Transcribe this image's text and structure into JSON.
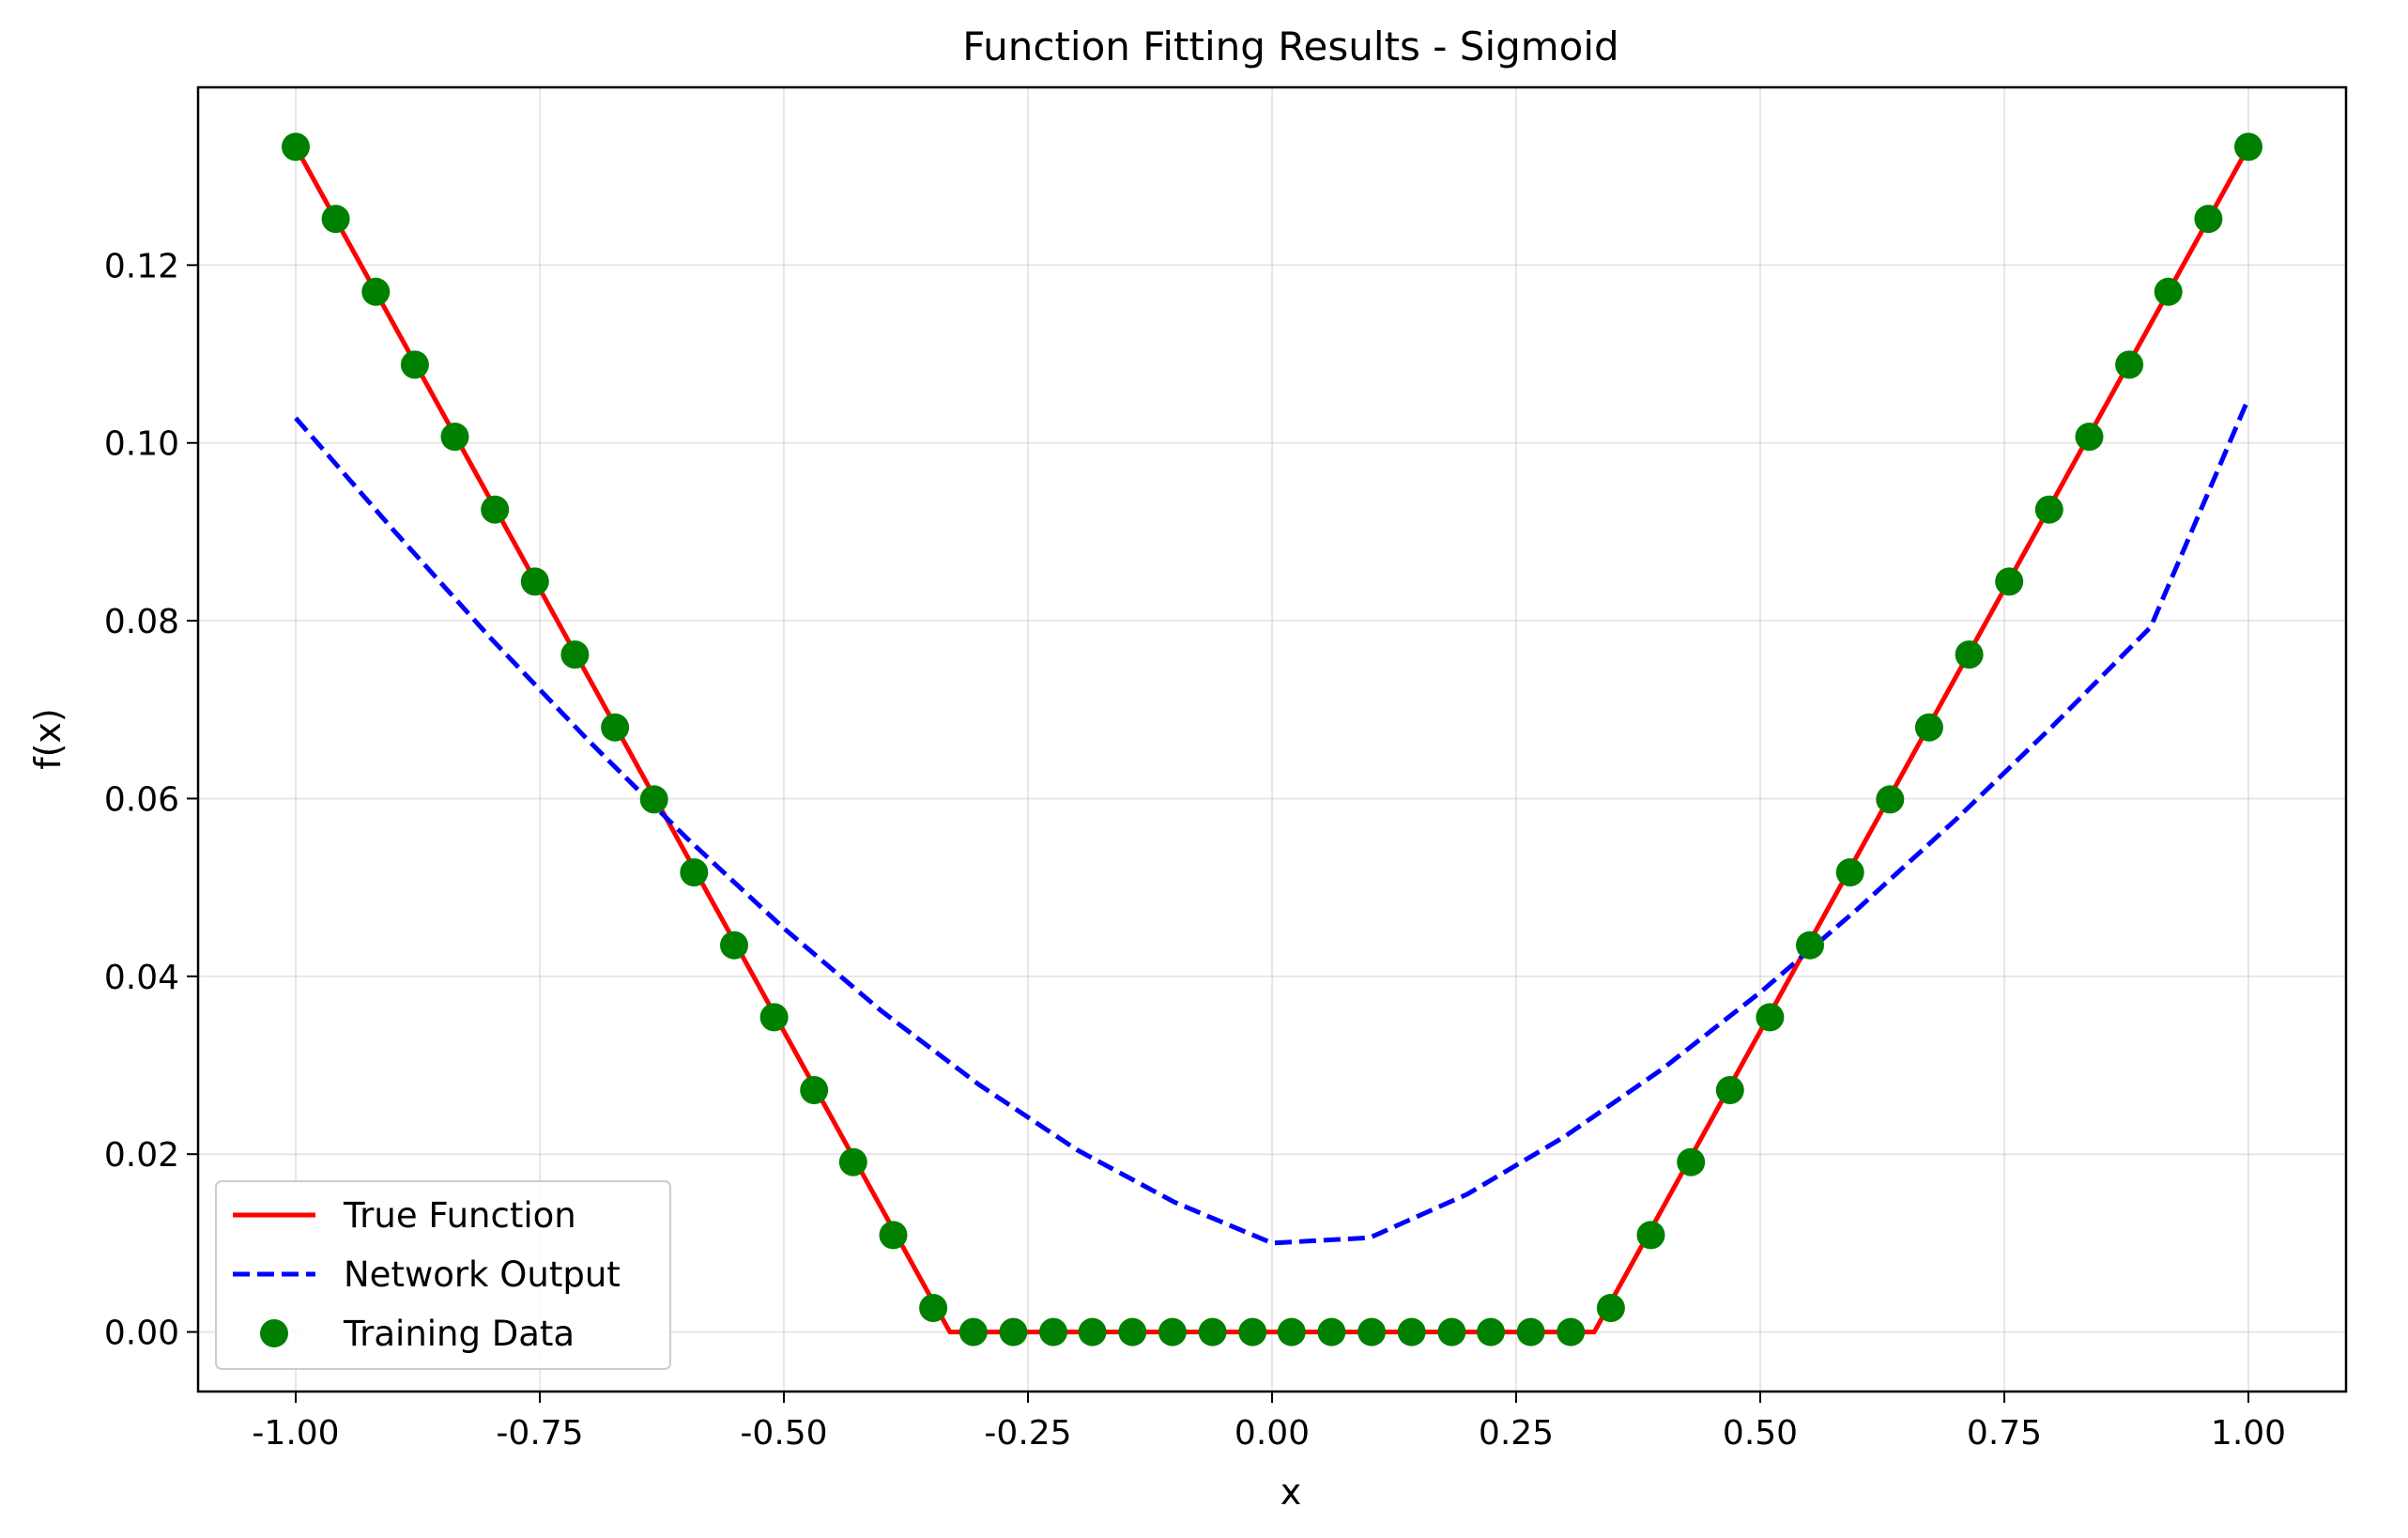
{
  "chart_data": {
    "type": "line",
    "title": "Function Fitting Results - Sigmoid",
    "xlabel": "x",
    "ylabel": "f(x)",
    "xlim": [
      -1.1,
      1.1
    ],
    "ylim": [
      -0.0067,
      0.14
    ],
    "grid": true,
    "legend_position": "lower-left",
    "x_ticks": [
      -1.0,
      -0.75,
      -0.5,
      -0.25,
      0.0,
      0.25,
      0.5,
      0.75,
      1.0
    ],
    "x_tick_labels": [
      "-1.00",
      "-0.75",
      "-0.50",
      "-0.25",
      "0.00",
      "0.25",
      "0.50",
      "0.75",
      "1.00"
    ],
    "y_ticks": [
      0.0,
      0.02,
      0.04,
      0.06,
      0.08,
      0.1,
      0.12
    ],
    "y_tick_labels": [
      "0.00",
      "0.02",
      "0.04",
      "0.06",
      "0.08",
      "0.10",
      "0.12"
    ],
    "series": [
      {
        "name": "True Function",
        "kind": "line",
        "style": "solid",
        "color": "#ff0000",
        "x": [
          -1.0,
          -0.33,
          0.33,
          1.0
        ],
        "y": [
          0.1333,
          0.0,
          0.0,
          0.1333
        ]
      },
      {
        "name": "Network Output",
        "kind": "line",
        "style": "dashed",
        "color": "#0000ff",
        "x": [
          -1.0,
          -0.9,
          -0.8,
          -0.7,
          -0.6,
          -0.5,
          -0.4,
          -0.3,
          -0.2,
          -0.1,
          0.0,
          0.1,
          0.2,
          0.3,
          0.4,
          0.5,
          0.6,
          0.7,
          0.8,
          0.9,
          1.0
        ],
        "y": [
          0.1028,
          0.0902,
          0.078,
          0.0665,
          0.0556,
          0.0454,
          0.0361,
          0.0278,
          0.0205,
          0.0146,
          0.01,
          0.0106,
          0.0155,
          0.022,
          0.0296,
          0.0382,
          0.0476,
          0.0576,
          0.0682,
          0.0793,
          0.105
        ]
      },
      {
        "name": "Training Data",
        "kind": "scatter",
        "color": "#008000",
        "x": [
          -1.0,
          -0.959,
          -0.918,
          -0.878,
          -0.837,
          -0.796,
          -0.755,
          -0.714,
          -0.673,
          -0.633,
          -0.592,
          -0.551,
          -0.51,
          -0.469,
          -0.429,
          -0.388,
          -0.347,
          -0.306,
          -0.265,
          -0.224,
          -0.184,
          -0.143,
          -0.102,
          -0.061,
          -0.02,
          0.02,
          0.061,
          0.102,
          0.143,
          0.184,
          0.224,
          0.265,
          0.306,
          0.347,
          0.388,
          0.429,
          0.469,
          0.51,
          0.551,
          0.592,
          0.633,
          0.673,
          0.714,
          0.755,
          0.796,
          0.837,
          0.878,
          0.918,
          0.959,
          1.0
        ],
        "y": [
          0.1333,
          0.1252,
          0.117,
          0.1088,
          0.1007,
          0.0925,
          0.0844,
          0.0762,
          0.068,
          0.0599,
          0.0517,
          0.0435,
          0.0354,
          0.0272,
          0.0191,
          0.0109,
          0.0027,
          0.0,
          0.0,
          0.0,
          0.0,
          0.0,
          0.0,
          0.0,
          0.0,
          0.0,
          0.0,
          0.0,
          0.0,
          0.0,
          0.0,
          0.0,
          0.0,
          0.0027,
          0.0109,
          0.0191,
          0.0272,
          0.0354,
          0.0435,
          0.0517,
          0.0599,
          0.068,
          0.0762,
          0.0844,
          0.0925,
          0.1007,
          0.1088,
          0.117,
          0.1252,
          0.1333
        ]
      }
    ]
  }
}
